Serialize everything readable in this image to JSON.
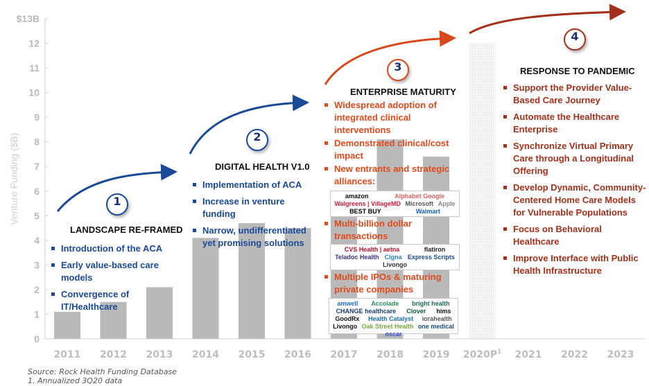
{
  "chart_data": {
    "type": "bar",
    "title": "",
    "xlabel": "",
    "ylabel": "Venture Funding ($B)",
    "ylim": [
      0,
      13
    ],
    "yticks": [
      "0",
      "1",
      "2",
      "3",
      "4",
      "5",
      "6",
      "7",
      "8",
      "9",
      "10",
      "11",
      "12",
      "$13B"
    ],
    "categories": [
      "2011",
      "2012",
      "2013",
      "2014",
      "2015",
      "2016",
      "2017",
      "2018",
      "2019",
      "2020P",
      "2021",
      "2022",
      "2023"
    ],
    "values": [
      1.1,
      1.5,
      2.1,
      4.1,
      4.7,
      4.5,
      5.8,
      8.1,
      7.4,
      12.0,
      null,
      null,
      null
    ],
    "projected": [
      false,
      false,
      false,
      false,
      false,
      false,
      false,
      false,
      false,
      true,
      false,
      false,
      false
    ],
    "superscripts": {
      "2020P": "1"
    },
    "colors": {
      "bar": "#bababa",
      "projected": "#efefef",
      "blue": "#1a4a96",
      "orange": "#e2491b",
      "darkred": "#a3301a"
    }
  },
  "phases": [
    {
      "number": "1",
      "title": "LANDSCAPE RE-FRAMED",
      "bullets": [
        "Introduction of the ACA",
        "Early value-based care models",
        "Convergence of IT/Healthcare"
      ]
    },
    {
      "number": "2",
      "title": "DIGITAL HEALTH V1.0",
      "bullets": [
        "Implementation of ACA",
        "Increase in venture funding",
        "Narrow, undifferentiated yet promising solutions"
      ]
    },
    {
      "number": "3",
      "title": "ENTERPRISE MATURITY",
      "bullets": [
        "Widespread adoption of integrated clinical interventions",
        "Demonstrated clinical/cost impact",
        "New entrants and strategic alliances:",
        "Multi-billion dollar transactions",
        "Multiple IPOs & maturing private companies"
      ],
      "logos_alliances": [
        "amazon",
        "Alphabet Google",
        "Walgreens | VillageMD",
        "Microsoft",
        "Apple",
        "BEST BUY",
        "Walmart"
      ],
      "logos_transactions": [
        "CVS Health | aetna",
        "flatiron",
        "Teladoc Health",
        "Cigna",
        "Express Scripts",
        "Livongo"
      ],
      "logos_ipos": [
        "amwell",
        "Accolade",
        "bright health",
        "CHANGE healthcare",
        "Clover",
        "hims",
        "GoodRx",
        "Health Catalyst",
        "iorahealth",
        "Livongo",
        "Oak Street Health",
        "one medical",
        "oscar"
      ]
    },
    {
      "number": "4",
      "title": "RESPONSE TO PANDEMIC",
      "bullets": [
        "Support the Provider Value-Based Care Journey",
        "Automate the Healthcare Enterprise",
        "Synchronize Virtual Primary Care through a Longitudinal Offering",
        "Develop Dynamic, Community-Centered Home Care Models for Vulnerable Populations",
        "Focus on Behavioral Healthcare",
        "Improve Interface with Public Health Infrastructure"
      ]
    }
  ],
  "footnotes": {
    "source": "Source: Rock Health Funding Database",
    "note": "1. Annualized 3Q20 data"
  }
}
